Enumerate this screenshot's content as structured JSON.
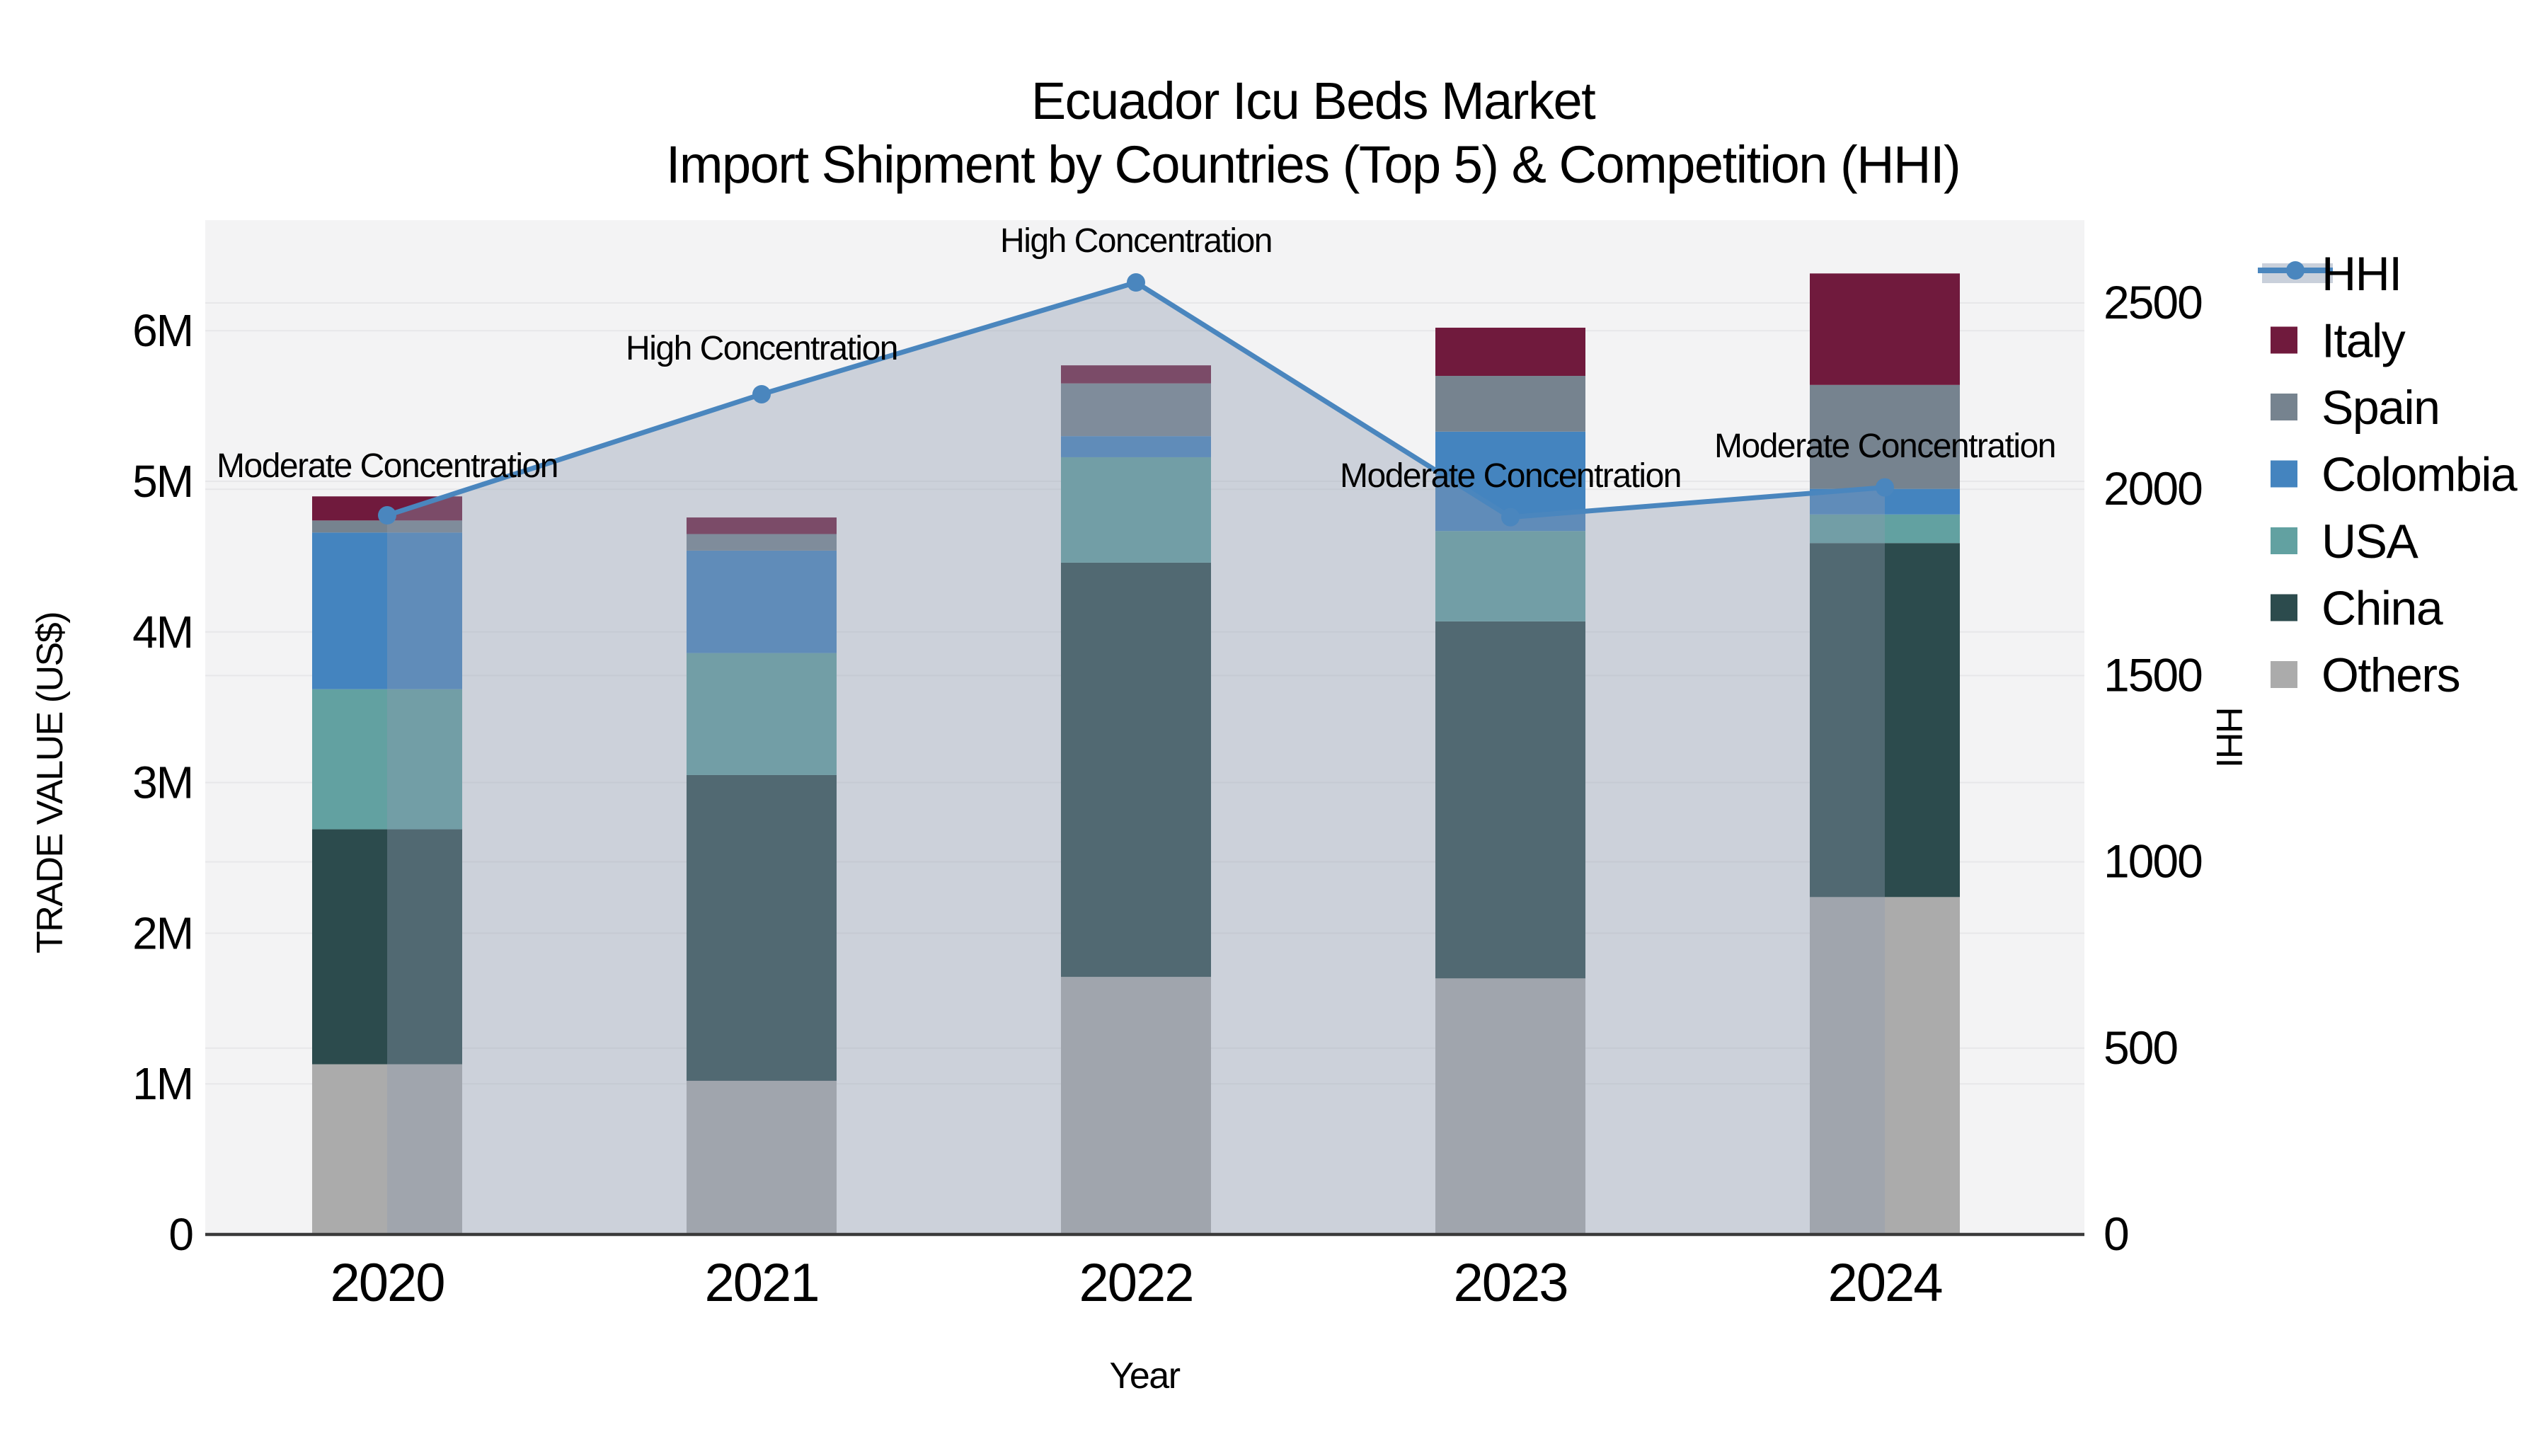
{
  "title": {
    "line1": "Ecuador Icu Beds Market",
    "line2": "Import Shipment by Countries (Top 5) & Competition (HHI)"
  },
  "axes": {
    "y_left": {
      "label": "TRADE VALUE (US$)",
      "ticks": [
        "0",
        "1M",
        "2M",
        "3M",
        "4M",
        "5M",
        "6M"
      ],
      "tick_values": [
        0,
        1000000,
        2000000,
        3000000,
        4000000,
        5000000,
        6000000
      ]
    },
    "y_right": {
      "label": "HHI",
      "ticks": [
        "0",
        "500",
        "1000",
        "1500",
        "2000",
        "2500"
      ],
      "tick_values": [
        0,
        500,
        1000,
        1500,
        2000,
        2500
      ]
    },
    "x": {
      "label": "Year",
      "categories": [
        "2020",
        "2021",
        "2022",
        "2023",
        "2024"
      ]
    }
  },
  "legend": [
    {
      "name": "HHI",
      "type": "line",
      "color": "#4a86be"
    },
    {
      "name": "Italy",
      "type": "swatch",
      "color": "#701a3d"
    },
    {
      "name": "Spain",
      "type": "swatch",
      "color": "#76838f"
    },
    {
      "name": "Colombia",
      "type": "swatch",
      "color": "#4484bf"
    },
    {
      "name": "USA",
      "type": "swatch",
      "color": "#62a1a1"
    },
    {
      "name": "China",
      "type": "swatch",
      "color": "#2c4b4d"
    },
    {
      "name": "Others",
      "type": "swatch",
      "color": "#ababab"
    }
  ],
  "colors": {
    "hhi_line": "#4a86be",
    "hhi_fill": "rgba(142,155,176,0.38)",
    "plot_bg": "#f3f3f4",
    "grid": "#e7e7e9",
    "axis_line": "#3a3a3a",
    "italy": "#701a3d",
    "spain": "#76838f",
    "colombia": "#4484bf",
    "usa": "#62a1a1",
    "china": "#2c4b4d",
    "others": "#ababab"
  },
  "chart_data": {
    "type": "bar+line",
    "title": "Ecuador Icu Beds Market — Import Shipment by Countries (Top 5) & Competition (HHI)",
    "categories": [
      "2020",
      "2021",
      "2022",
      "2023",
      "2024"
    ],
    "stack_order_bottom_to_top": [
      "Others",
      "China",
      "USA",
      "Colombia",
      "Spain",
      "Italy"
    ],
    "series": [
      {
        "name": "Others",
        "color_key": "others",
        "values": [
          1130000,
          1020000,
          1710000,
          1700000,
          2240000
        ]
      },
      {
        "name": "China",
        "color_key": "china",
        "values": [
          1560000,
          2030000,
          2750000,
          2370000,
          2350000
        ]
      },
      {
        "name": "USA",
        "color_key": "usa",
        "values": [
          930000,
          810000,
          700000,
          600000,
          190000
        ]
      },
      {
        "name": "Colombia",
        "color_key": "colombia",
        "values": [
          1040000,
          680000,
          140000,
          660000,
          170000
        ]
      },
      {
        "name": "Spain",
        "color_key": "spain",
        "values": [
          80000,
          110000,
          350000,
          370000,
          690000
        ]
      },
      {
        "name": "Italy",
        "color_key": "italy",
        "values": [
          160000,
          110000,
          120000,
          320000,
          740000
        ]
      }
    ],
    "totals": [
      4900000,
      4760000,
      5770000,
      6020000,
      6380000
    ],
    "hhi": {
      "name": "HHI",
      "values": [
        1930,
        2255,
        2555,
        1925,
        2005
      ],
      "annotations": [
        "Moderate Concentration",
        "High Concentration",
        "High Concentration",
        "Moderate Concentration",
        "Moderate Concentration"
      ]
    },
    "xlabel": "Year",
    "ylabel_left": "TRADE VALUE (US$)",
    "ylabel_right": "HHI",
    "ylim_left": [
      0,
      6600000
    ],
    "ylim_right": [
      0,
      2720
    ],
    "grid": true,
    "legend_position": "right"
  }
}
